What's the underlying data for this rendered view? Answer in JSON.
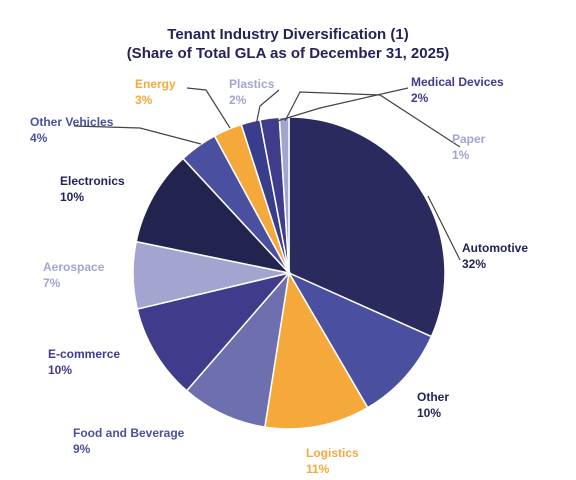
{
  "chart_data": {
    "type": "pie",
    "title": "Tenant Industry Diversification (1)",
    "subtitle": "(Share of Total GLA as of December 31, 2025)",
    "unit": "%",
    "slices": [
      {
        "label": "Automotive",
        "value": 32,
        "color": "#2a2a5e"
      },
      {
        "label": "Other",
        "value": 10,
        "color": "#4a509f"
      },
      {
        "label": "Logistics",
        "value": 11,
        "color": "#f6a93b"
      },
      {
        "label": "Food and Beverage",
        "value": 9,
        "color": "#6e6fae"
      },
      {
        "label": "E-commerce",
        "value": 10,
        "color": "#403b8a"
      },
      {
        "label": "Aerospace",
        "value": 7,
        "color": "#a3a4d0"
      },
      {
        "label": "Electronics",
        "value": 10,
        "color": "#23234f"
      },
      {
        "label": "Other Vehicles",
        "value": 4,
        "color": "#4a509f"
      },
      {
        "label": "Energy",
        "value": 3,
        "color": "#f6a93b"
      },
      {
        "label": "Plastics",
        "value": 2,
        "color": "#383e8c"
      },
      {
        "label": "Medical Devices",
        "value": 2,
        "color": "#403b8a"
      },
      {
        "label": "Paper",
        "value": 1,
        "color": "#a3a4d0"
      }
    ],
    "label_colors": {
      "Automotive": "#23235a",
      "Other": "#23235a",
      "Logistics": "#f6a93b",
      "Food and Beverage": "#4a509f",
      "E-commerce": "#403b8a",
      "Aerospace": "#a3a4d0",
      "Electronics": "#23235a",
      "Other Vehicles": "#4a509f",
      "Energy": "#f6a93b",
      "Plastics": "#a3a4d0",
      "Medical Devices": "#403b8a",
      "Paper": "#a3a4d0"
    }
  }
}
